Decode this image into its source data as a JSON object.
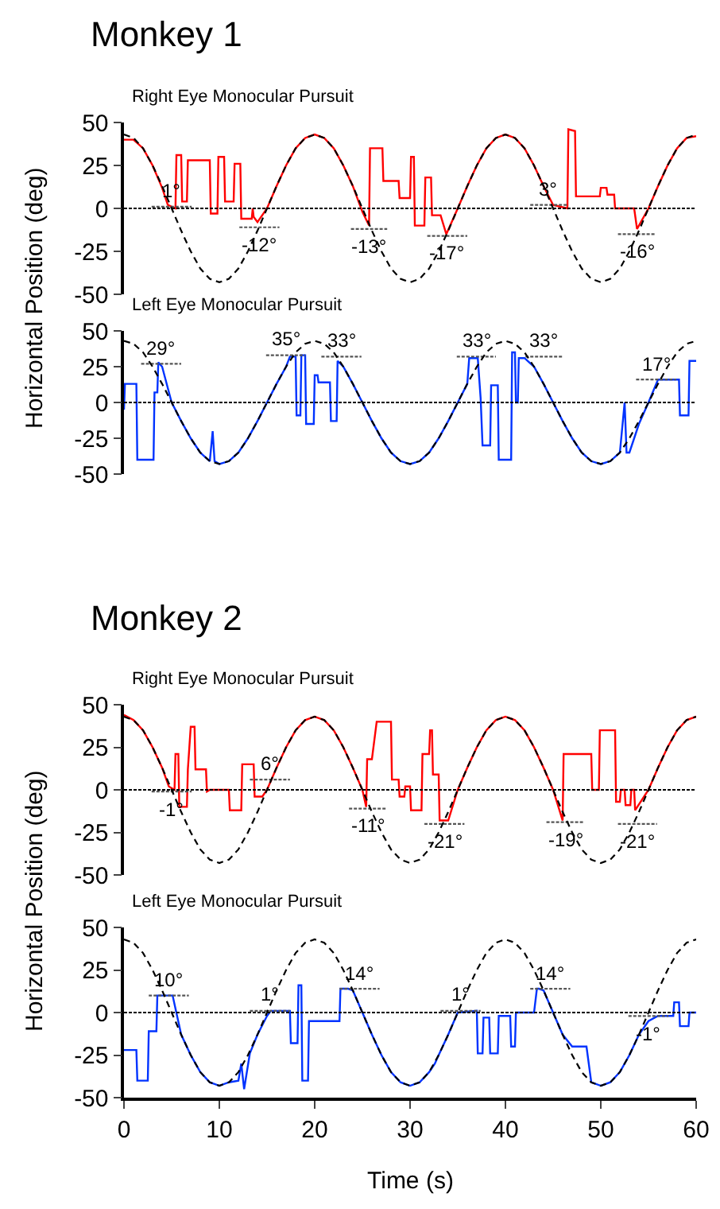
{
  "chart_data": [
    {
      "type": "line",
      "title": "Monkey 1",
      "subtitle": "Right Eye Monocular Pursuit",
      "ylabel": "Horizontal Position (deg)",
      "xlim": [
        0,
        60
      ],
      "xticks": [
        0,
        10,
        20,
        30,
        40,
        50,
        60
      ],
      "ylim": [
        -50,
        50
      ],
      "yticks": [
        -50,
        -25,
        0,
        25,
        50
      ],
      "tick_labels": "y",
      "x": [
        0,
        1,
        2,
        3,
        4,
        5,
        6,
        7,
        8,
        9,
        10,
        11,
        12,
        13,
        14,
        15,
        16,
        17,
        18,
        19,
        20,
        21,
        22,
        23,
        24,
        25,
        26,
        27,
        28,
        29,
        30,
        31,
        32,
        33,
        34,
        35,
        36,
        37,
        38,
        39,
        40,
        41,
        42,
        43,
        44,
        45,
        46,
        47,
        48,
        49,
        50,
        51,
        52,
        53,
        54,
        55,
        56,
        57,
        58,
        59,
        60
      ],
      "ref_lines": [
        {
          "axis": "y",
          "value": 0,
          "color": "#000000",
          "line_style": "dotted"
        }
      ],
      "series": [
        {
          "color": "#000000",
          "line_style": "dashed",
          "values": [
            43,
            41,
            35,
            25,
            13,
            0,
            -13,
            -25,
            -35,
            -41,
            -43,
            -41,
            -35,
            -25,
            -13,
            0,
            13,
            25,
            35,
            41,
            43,
            41,
            35,
            25,
            13,
            0,
            -13,
            -25,
            -35,
            -41,
            -43,
            -41,
            -35,
            -25,
            -13,
            0,
            13,
            25,
            35,
            41,
            43,
            41,
            35,
            25,
            13,
            0,
            -13,
            -25,
            -35,
            -41,
            -43,
            -41,
            -35,
            -25,
            -13,
            0,
            13,
            25,
            35,
            41,
            43
          ]
        },
        {
          "color": "#ff0000",
          "line_style": "solid",
          "x": [
            0,
            1,
            2,
            3,
            4,
            4.6,
            5.4,
            5.5,
            6,
            6.1,
            6.6,
            6.7,
            9,
            9.1,
            9.8,
            9.9,
            10.5,
            10.6,
            11.5,
            11.6,
            12.2,
            12.3,
            13.4,
            13.5,
            13.6,
            14,
            15,
            16,
            17,
            18,
            19,
            20,
            21,
            22,
            23,
            24,
            25,
            25.7,
            25.8,
            27.1,
            27.2,
            28.8,
            28.9,
            30,
            30.1,
            30.4,
            30.5,
            31.5,
            31.6,
            32.2,
            32.3,
            33.2,
            33.8,
            35,
            36,
            37,
            38,
            39,
            40,
            41,
            42,
            43,
            44,
            45,
            46.5,
            46.6,
            47.3,
            47.4,
            49.9,
            50,
            50.6,
            50.7,
            51.4,
            51.5,
            53.5,
            53.8,
            55,
            56,
            57,
            58,
            59,
            60
          ],
          "values": [
            40,
            40,
            35,
            25,
            12,
            2,
            0,
            31,
            31,
            4,
            4,
            28,
            28,
            -3,
            -3,
            30,
            30,
            4,
            4,
            26,
            26,
            -6,
            -6,
            0,
            -5,
            -8,
            0,
            13,
            25,
            35,
            41,
            43,
            41,
            35,
            25,
            13,
            -2,
            -10,
            35,
            35,
            16,
            16,
            6,
            6,
            30,
            30,
            -10,
            -10,
            18,
            18,
            -4,
            -4,
            -15,
            0,
            13,
            25,
            35,
            41,
            43,
            41,
            35,
            25,
            13,
            2,
            0,
            46,
            45,
            7,
            7,
            12,
            12,
            8,
            8,
            0,
            0,
            -12,
            0,
            13,
            25,
            35,
            41,
            42
          ]
        },
        {
          "color": "#555555",
          "line_style": "dotted",
          "x": [
            2.9,
            7.1
          ],
          "values": [
            1,
            1
          ]
        },
        {
          "color": "#555555",
          "line_style": "dotted",
          "x": [
            12.1,
            16.3
          ],
          "values": [
            -11,
            -11
          ]
        },
        {
          "color": "#555555",
          "line_style": "dotted",
          "x": [
            23.8,
            27.6
          ],
          "values": [
            -12,
            -12
          ]
        },
        {
          "color": "#555555",
          "line_style": "dotted",
          "x": [
            31.8,
            36
          ],
          "values": [
            -16,
            -16
          ]
        },
        {
          "color": "#555555",
          "line_style": "dotted",
          "x": [
            42.6,
            46.5
          ],
          "values": [
            2,
            2
          ]
        },
        {
          "color": "#555555",
          "line_style": "dotted",
          "x": [
            51.8,
            55.7
          ],
          "values": [
            -15,
            -15
          ]
        }
      ],
      "annotations": [
        {
          "text": "1°",
          "x": 5,
          "y": 1
        },
        {
          "text": "-12°",
          "x": 14.2,
          "y": -11
        },
        {
          "text": "-13°",
          "x": 25.7,
          "y": -12
        },
        {
          "text": "-17°",
          "x": 33.9,
          "y": -16
        },
        {
          "text": "3°",
          "x": 44.55,
          "y": 2
        },
        {
          "text": "-16°",
          "x": 53.75,
          "y": -15
        }
      ]
    },
    {
      "type": "line",
      "subtitle": "Left Eye Monocular Pursuit",
      "xlim": [
        0,
        60
      ],
      "xticks": [
        0,
        10,
        20,
        30,
        40,
        50,
        60
      ],
      "ylim": [
        -50,
        50
      ],
      "yticks": [
        -50,
        -25,
        0,
        25,
        50
      ],
      "tick_labels": "y",
      "x": [
        0,
        1,
        2,
        3,
        4,
        5,
        6,
        7,
        8,
        9,
        10,
        11,
        12,
        13,
        14,
        15,
        16,
        17,
        18,
        19,
        20,
        21,
        22,
        23,
        24,
        25,
        26,
        27,
        28,
        29,
        30,
        31,
        32,
        33,
        34,
        35,
        36,
        37,
        38,
        39,
        40,
        41,
        42,
        43,
        44,
        45,
        46,
        47,
        48,
        49,
        50,
        51,
        52,
        53,
        54,
        55,
        56,
        57,
        58,
        59,
        60
      ],
      "ref_lines": [
        {
          "axis": "y",
          "value": 0,
          "color": "#000000",
          "line_style": "dotted"
        }
      ],
      "series": [
        {
          "color": "#000000",
          "line_style": "dashed",
          "values": [
            43,
            41,
            35,
            25,
            13,
            0,
            -13,
            -25,
            -35,
            -41,
            -43,
            -41,
            -35,
            -25,
            -13,
            0,
            13,
            25,
            35,
            41,
            43,
            41,
            35,
            25,
            13,
            0,
            -13,
            -25,
            -35,
            -41,
            -43,
            -41,
            -35,
            -25,
            -13,
            0,
            13,
            25,
            35,
            41,
            43,
            41,
            35,
            25,
            13,
            0,
            -13,
            -25,
            -35,
            -41,
            -43,
            -41,
            -35,
            -25,
            -13,
            0,
            13,
            25,
            35,
            41,
            43
          ]
        },
        {
          "color": "#0033ff",
          "line_style": "solid",
          "x": [
            0,
            0.1,
            1.3,
            1.4,
            3.1,
            3.2,
            3.5,
            3.6,
            4,
            5,
            6,
            7,
            8,
            9,
            9.3,
            9.5,
            10,
            11,
            12,
            13,
            14,
            15,
            16,
            17,
            17.4,
            18,
            18.1,
            18.5,
            18.6,
            19,
            19.1,
            19.9,
            20,
            20.3,
            20.4,
            21.6,
            21.7,
            22.3,
            22.4,
            23,
            24,
            25,
            26,
            27,
            28,
            29,
            30,
            31,
            32,
            33,
            34,
            35,
            36,
            36.2,
            37.1,
            37.4,
            37.6,
            38.4,
            38.5,
            39.2,
            39.3,
            40.6,
            40.7,
            41,
            41.1,
            41.3,
            41.4,
            42,
            43,
            44,
            45,
            46,
            47,
            48,
            49,
            50,
            51,
            52,
            52.5,
            52.7,
            53,
            54,
            55,
            56,
            58.2,
            58.3,
            59.2,
            59.3,
            60
          ],
          "values": [
            -5,
            13,
            13,
            -40,
            -40,
            7,
            7,
            28,
            25,
            0,
            -13,
            -25,
            -35,
            -41,
            -20,
            -41,
            -43,
            -41,
            -35,
            -25,
            -13,
            0,
            13,
            25,
            32,
            32,
            -9,
            -9,
            33,
            33,
            -15,
            -15,
            19,
            19,
            14,
            14,
            -13,
            -13,
            29,
            25,
            13,
            0,
            -13,
            -25,
            -35,
            -41,
            -43,
            -41,
            -35,
            -25,
            -13,
            0,
            13,
            31,
            31,
            3,
            -30,
            -30,
            12,
            12,
            -40,
            -40,
            35,
            35,
            0,
            0,
            31,
            31,
            25,
            13,
            0,
            -13,
            -25,
            -35,
            -41,
            -43,
            -41,
            -35,
            0,
            -35,
            -35,
            -15,
            0,
            16,
            16,
            -9,
            -9,
            29,
            29
          ]
        },
        {
          "color": "#555555",
          "line_style": "dotted",
          "x": [
            1.8,
            6
          ],
          "values": [
            27,
            27
          ]
        },
        {
          "color": "#555555",
          "line_style": "dotted",
          "x": [
            14.9,
            19
          ],
          "values": [
            33,
            33
          ]
        },
        {
          "color": "#555555",
          "line_style": "dotted",
          "x": [
            20.7,
            24.9
          ],
          "values": [
            32,
            32
          ]
        },
        {
          "color": "#555555",
          "line_style": "dotted",
          "x": [
            34.9,
            39
          ],
          "values": [
            32,
            32
          ]
        },
        {
          "color": "#555555",
          "line_style": "dotted",
          "x": [
            42.1,
            46
          ],
          "values": [
            32,
            32
          ]
        },
        {
          "color": "#555555",
          "line_style": "dotted",
          "x": [
            53.7,
            57.9
          ],
          "values": [
            16,
            16
          ]
        }
      ],
      "annotations": [
        {
          "text": "29°",
          "x": 3.9,
          "y": 27
        },
        {
          "text": "35°",
          "x": 16.95,
          "y": 33
        },
        {
          "text": "33°",
          "x": 22.8,
          "y": 32
        },
        {
          "text": "33°",
          "x": 36.95,
          "y": 32
        },
        {
          "text": "33°",
          "x": 44.05,
          "y": 32
        },
        {
          "text": "17°",
          "x": 55.8,
          "y": 16
        }
      ]
    },
    {
      "type": "line",
      "title": "Monkey 2",
      "subtitle": "Right Eye Monocular Pursuit",
      "ylabel": "Horizontal Position (deg)",
      "xlim": [
        0,
        60
      ],
      "xticks": [
        0,
        10,
        20,
        30,
        40,
        50,
        60
      ],
      "ylim": [
        -50,
        50
      ],
      "yticks": [
        -50,
        -25,
        0,
        25,
        50
      ],
      "tick_labels": "y",
      "x": [
        0,
        1,
        2,
        3,
        4,
        5,
        6,
        7,
        8,
        9,
        10,
        11,
        12,
        13,
        14,
        15,
        16,
        17,
        18,
        19,
        20,
        21,
        22,
        23,
        24,
        25,
        26,
        27,
        28,
        29,
        30,
        31,
        32,
        33,
        34,
        35,
        36,
        37,
        38,
        39,
        40,
        41,
        42,
        43,
        44,
        45,
        46,
        47,
        48,
        49,
        50,
        51,
        52,
        53,
        54,
        55,
        56,
        57,
        58,
        59,
        60
      ],
      "ref_lines": [
        {
          "axis": "y",
          "value": 0,
          "color": "#000000",
          "line_style": "dotted"
        }
      ],
      "series": [
        {
          "color": "#ff0000",
          "line_style": "solid",
          "x": [
            0,
            1,
            2,
            3,
            4,
            4.7,
            5.3,
            5.4,
            5.7,
            5.8,
            6.6,
            6.7,
            7,
            7.4,
            7.5,
            8.6,
            8.7,
            9,
            11,
            11.1,
            12.3,
            12.4,
            13.6,
            13.7,
            14.5,
            15,
            16,
            17,
            18,
            19,
            20,
            21,
            22,
            23,
            24,
            25,
            25.4,
            25.5,
            26,
            26.5,
            28,
            28.1,
            28.8,
            28.9,
            29.4,
            29.5,
            30,
            30.1,
            31.2,
            31.3,
            32,
            32.1,
            32.3,
            32.4,
            33,
            33.1,
            34,
            35,
            36,
            37,
            38,
            39,
            40,
            41,
            42,
            43,
            44,
            45,
            46,
            46.1,
            49,
            49.1,
            49.8,
            49.9,
            51.5,
            51.6,
            52,
            52.1,
            52.5,
            52.6,
            53.1,
            53.2,
            53.5,
            53.6,
            55,
            56,
            57,
            58,
            59,
            60
          ],
          "values": [
            44,
            41,
            35,
            25,
            13,
            2,
            0,
            21,
            21,
            -10,
            -10,
            12,
            37,
            37,
            12,
            12,
            -1,
            0,
            0,
            -12,
            -12,
            15,
            15,
            -4,
            -4,
            0,
            13,
            25,
            35,
            41,
            43,
            41,
            35,
            25,
            13,
            0,
            -10,
            18,
            18,
            40,
            40,
            6,
            6,
            -4,
            -4,
            2,
            2,
            -12,
            -12,
            21,
            21,
            35,
            35,
            9,
            9,
            -18,
            -18,
            0,
            13,
            25,
            35,
            41,
            43,
            41,
            35,
            25,
            13,
            0,
            -18,
            21,
            21,
            0,
            0,
            35,
            35,
            -7,
            -7,
            0,
            0,
            -9,
            -9,
            0,
            0,
            -12,
            0,
            13,
            25,
            35,
            41,
            43
          ]
        },
        {
          "color": "#000000",
          "line_style": "dashed",
          "values": [
            43,
            41,
            35,
            25,
            13,
            0,
            -13,
            -25,
            -35,
            -41,
            -43,
            -41,
            -35,
            -25,
            -13,
            0,
            13,
            25,
            35,
            41,
            43,
            41,
            35,
            25,
            13,
            0,
            -13,
            -25,
            -35,
            -41,
            -43,
            -41,
            -35,
            -25,
            -13,
            0,
            13,
            25,
            35,
            41,
            43,
            41,
            35,
            25,
            13,
            0,
            -13,
            -25,
            -35,
            -41,
            -43,
            -41,
            -35,
            -25,
            -13,
            0,
            13,
            25,
            35,
            41,
            43
          ]
        },
        {
          "color": "#555555",
          "line_style": "dotted",
          "x": [
            2.9,
            7.1
          ],
          "values": [
            -1,
            -1
          ]
        },
        {
          "color": "#555555",
          "line_style": "dotted",
          "x": [
            13.2,
            17.4
          ],
          "values": [
            6,
            6
          ]
        },
        {
          "color": "#555555",
          "line_style": "dotted",
          "x": [
            23.6,
            27.6
          ],
          "values": [
            -11,
            -11
          ]
        },
        {
          "color": "#555555",
          "line_style": "dotted",
          "x": [
            31.5,
            35.7
          ],
          "values": [
            -20,
            -20
          ]
        },
        {
          "color": "#555555",
          "line_style": "dotted",
          "x": [
            44.3,
            48.2
          ],
          "values": [
            -19,
            -19
          ]
        },
        {
          "color": "#555555",
          "line_style": "dotted",
          "x": [
            51.8,
            55.9
          ],
          "values": [
            -20,
            -20
          ]
        }
      ],
      "annotations": [
        {
          "text": "-1°",
          "x": 5,
          "y": -1
        },
        {
          "text": "6°",
          "x": 15.3,
          "y": 6
        },
        {
          "text": "-11°",
          "x": 25.6,
          "y": -11
        },
        {
          "text": "-21°",
          "x": 33.6,
          "y": -20
        },
        {
          "text": "-19°",
          "x": 46.25,
          "y": -19
        },
        {
          "text": "-21°",
          "x": 53.85,
          "y": -20
        }
      ]
    },
    {
      "type": "line",
      "subtitle": "Left Eye Monocular Pursuit",
      "xlabel": "Time (s)",
      "xlim": [
        0,
        60
      ],
      "xticks": [
        0,
        10,
        20,
        30,
        40,
        50,
        60
      ],
      "ylim": [
        -50,
        50
      ],
      "yticks": [
        -50,
        -25,
        0,
        25,
        50
      ],
      "x": [
        0,
        1,
        2,
        3,
        4,
        5,
        6,
        7,
        8,
        9,
        10,
        11,
        12,
        13,
        14,
        15,
        16,
        17,
        18,
        19,
        20,
        21,
        22,
        23,
        24,
        25,
        26,
        27,
        28,
        29,
        30,
        31,
        32,
        33,
        34,
        35,
        36,
        37,
        38,
        39,
        40,
        41,
        42,
        43,
        44,
        45,
        46,
        47,
        48,
        49,
        50,
        51,
        52,
        53,
        54,
        55,
        56,
        57,
        58,
        59,
        60
      ],
      "ref_lines": [
        {
          "axis": "y",
          "value": 0,
          "color": "#000000",
          "line_style": "dotted"
        }
      ],
      "series": [
        {
          "color": "#000000",
          "line_style": "dashed",
          "values": [
            43,
            41,
            35,
            25,
            13,
            0,
            -13,
            -25,
            -35,
            -41,
            -43,
            -41,
            -35,
            -25,
            -13,
            0,
            13,
            25,
            35,
            41,
            43,
            41,
            35,
            25,
            13,
            0,
            -13,
            -25,
            -35,
            -41,
            -43,
            -41,
            -35,
            -25,
            -13,
            0,
            13,
            25,
            35,
            41,
            43,
            41,
            35,
            25,
            13,
            0,
            -13,
            -25,
            -35,
            -41,
            -43,
            -41,
            -35,
            -25,
            -13,
            0,
            13,
            25,
            35,
            41,
            43
          ]
        },
        {
          "color": "#0033ff",
          "line_style": "solid",
          "x": [
            0,
            1.3,
            1.4,
            2.5,
            2.6,
            3.4,
            3.5,
            5.1,
            6,
            7,
            8,
            9,
            10,
            11,
            12,
            12.3,
            12.6,
            13.2,
            14,
            15,
            15.4,
            17.4,
            17.5,
            18.2,
            18.3,
            18.6,
            18.7,
            19.3,
            19.4,
            22.6,
            22.7,
            23.5,
            24,
            25,
            26,
            27,
            28,
            29,
            30,
            31,
            32,
            32.6,
            33,
            34,
            35,
            37,
            37.1,
            37.6,
            37.7,
            38.3,
            38.4,
            39.2,
            39.3,
            40.5,
            40.6,
            41,
            41.1,
            43,
            43.3,
            43.5,
            44,
            45,
            46,
            47,
            48.5,
            49,
            50,
            51,
            52,
            53,
            54,
            55,
            56,
            57.6,
            57.7,
            58.2,
            58.3,
            59.2,
            59.3,
            60
          ],
          "values": [
            -22,
            -22,
            -40,
            -40,
            -11,
            -11,
            10,
            10,
            -13,
            -25,
            -35,
            -41,
            -43,
            -41,
            -40,
            -30,
            -45,
            -24,
            -13,
            -2,
            1,
            1,
            -18,
            -18,
            16,
            16,
            -40,
            -40,
            -5,
            -5,
            14,
            14,
            13,
            0,
            -13,
            -25,
            -35,
            -41,
            -43,
            -41,
            -35,
            -30,
            -25,
            -13,
            0,
            1,
            -24,
            -24,
            -3,
            -3,
            -24,
            -24,
            -2,
            -2,
            -20,
            -20,
            0,
            0,
            14,
            14,
            13,
            0,
            -13,
            -20,
            -20,
            -41,
            -43,
            -41,
            -35,
            -25,
            -13,
            -5,
            -2,
            -2,
            6,
            6,
            -8,
            -8,
            0,
            0
          ]
        },
        {
          "color": "#555555",
          "line_style": "dotted",
          "x": [
            2.6,
            6.8
          ],
          "values": [
            10,
            10
          ]
        },
        {
          "color": "#555555",
          "line_style": "dotted",
          "x": [
            13.2,
            17.4
          ],
          "values": [
            1,
            1
          ]
        },
        {
          "color": "#555555",
          "line_style": "dotted",
          "x": [
            22.6,
            26.8
          ],
          "values": [
            14,
            14
          ]
        },
        {
          "color": "#555555",
          "line_style": "dotted",
          "x": [
            33.2,
            37.4
          ],
          "values": [
            1,
            1
          ]
        },
        {
          "color": "#555555",
          "line_style": "dotted",
          "x": [
            42.6,
            46.8
          ],
          "values": [
            14,
            14
          ]
        },
        {
          "color": "#555555",
          "line_style": "dotted",
          "x": [
            52.9,
            57.1
          ],
          "values": [
            -2,
            -2
          ]
        }
      ],
      "annotations": [
        {
          "text": "10°",
          "x": 4.7,
          "y": 10
        },
        {
          "text": "1°",
          "x": 15.3,
          "y": 1
        },
        {
          "text": "14°",
          "x": 24.7,
          "y": 14
        },
        {
          "text": "1°",
          "x": 35.3,
          "y": 1
        },
        {
          "text": "14°",
          "x": 44.7,
          "y": 14
        },
        {
          "text": "-1°",
          "x": 55,
          "y": -2
        }
      ]
    }
  ]
}
